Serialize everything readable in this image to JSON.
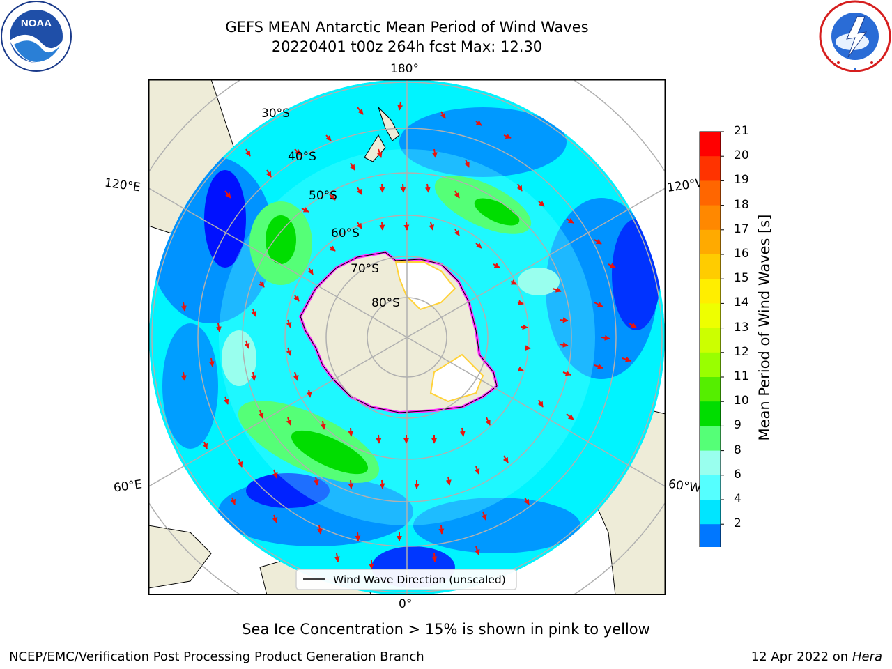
{
  "title": {
    "line1": "GEFS MEAN Antarctic Mean Period of Wind Waves",
    "line2": "20220401 t00z 264h fcst   Max: 12.30"
  },
  "map": {
    "lat_labels": [
      "30°S",
      "40°S",
      "50°S",
      "60°S",
      "70°S",
      "80°S"
    ],
    "lon_labels": {
      "top": "180°",
      "bottom": "0°",
      "left_upper": "120°E",
      "left_lower": "60°E",
      "right_upper": "120°W",
      "right_lower": "60°W"
    },
    "legend": "Wind Wave Direction (unscaled)",
    "colors": {
      "land": "#eeecd8",
      "ice_edge": "#ff30ff",
      "ice_yellow": "#ffd23a",
      "arrow": "#e8140e",
      "grid": "#b0b0b0"
    }
  },
  "colorbar": {
    "label": "Mean Period of Wind Waves [s]",
    "ticks": [
      "21",
      "20",
      "19",
      "18",
      "17",
      "16",
      "15",
      "14",
      "13",
      "12",
      "11",
      "10",
      "9",
      "8",
      "6",
      "4",
      "2"
    ],
    "colors_top_to_bottom": [
      "#ff0000",
      "#ff3300",
      "#ff6600",
      "#ff8800",
      "#ffaa00",
      "#ffcc00",
      "#ffee00",
      "#eeff00",
      "#ccff00",
      "#99ff00",
      "#55ee00",
      "#00dd00",
      "#55ff77",
      "#99ffee",
      "#55ffff",
      "#00e5ff",
      "#0077ff"
    ],
    "under_color": "#0000ff"
  },
  "logos": {
    "noaa": "NOAA",
    "nws_text": "NATIONAL WEATHER SERVICE"
  },
  "caption": "Sea Ice Concentration > 15% is shown in pink to yellow",
  "footer": {
    "left": "NCEP/EMC/Verification Post Processing Product Generation Branch",
    "right_date": "12 Apr 2022 on",
    "right_machine": "Hera"
  }
}
